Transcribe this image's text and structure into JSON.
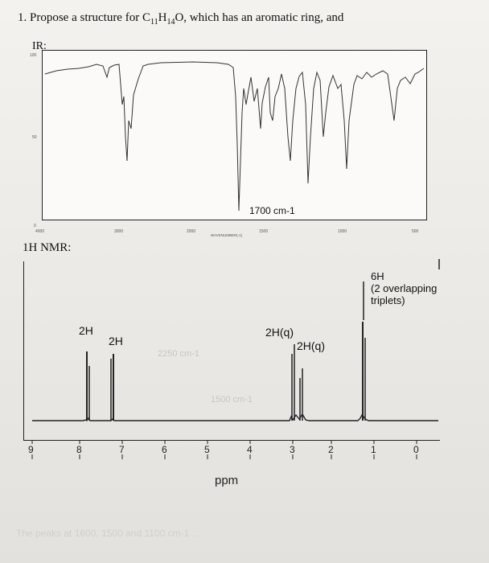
{
  "question": {
    "prefix": "1. Propose a structure for C",
    "c_sub": "11",
    "h": "H",
    "h_sub": "14",
    "suffix": "O, which has an aromatic ring, and"
  },
  "ir": {
    "label": "IR:",
    "y_ticks": [
      "100",
      "50",
      "0"
    ],
    "x_ticks": [
      "4000",
      "3000",
      "2000",
      "1500",
      "1000",
      "500"
    ],
    "x_axis_label": "WAVENUMBER(-1)",
    "annotation": "1700 cm-1"
  },
  "nmr": {
    "label": "1H NMR:",
    "x_axis_label": "ppm",
    "x_ticks": [
      "9",
      "8",
      "7",
      "6",
      "5",
      "4",
      "3",
      "2",
      "1",
      "0"
    ],
    "peaks": [
      {
        "ppm": 7.95,
        "label": "2H"
      },
      {
        "ppm": 7.25,
        "label": "2H"
      },
      {
        "ppm": 2.95,
        "label": "2H(q)"
      },
      {
        "ppm": 2.65,
        "label": "2H(q)"
      },
      {
        "ppm": 1.25,
        "label": "6H\n(2 overlapping\ntriplets)"
      }
    ],
    "faint_notes": [
      "2250 cm-1",
      "1500 cm-1"
    ]
  },
  "footer_faint": "The peaks at 1600, 1500 and 1100 cm-1 ..."
}
